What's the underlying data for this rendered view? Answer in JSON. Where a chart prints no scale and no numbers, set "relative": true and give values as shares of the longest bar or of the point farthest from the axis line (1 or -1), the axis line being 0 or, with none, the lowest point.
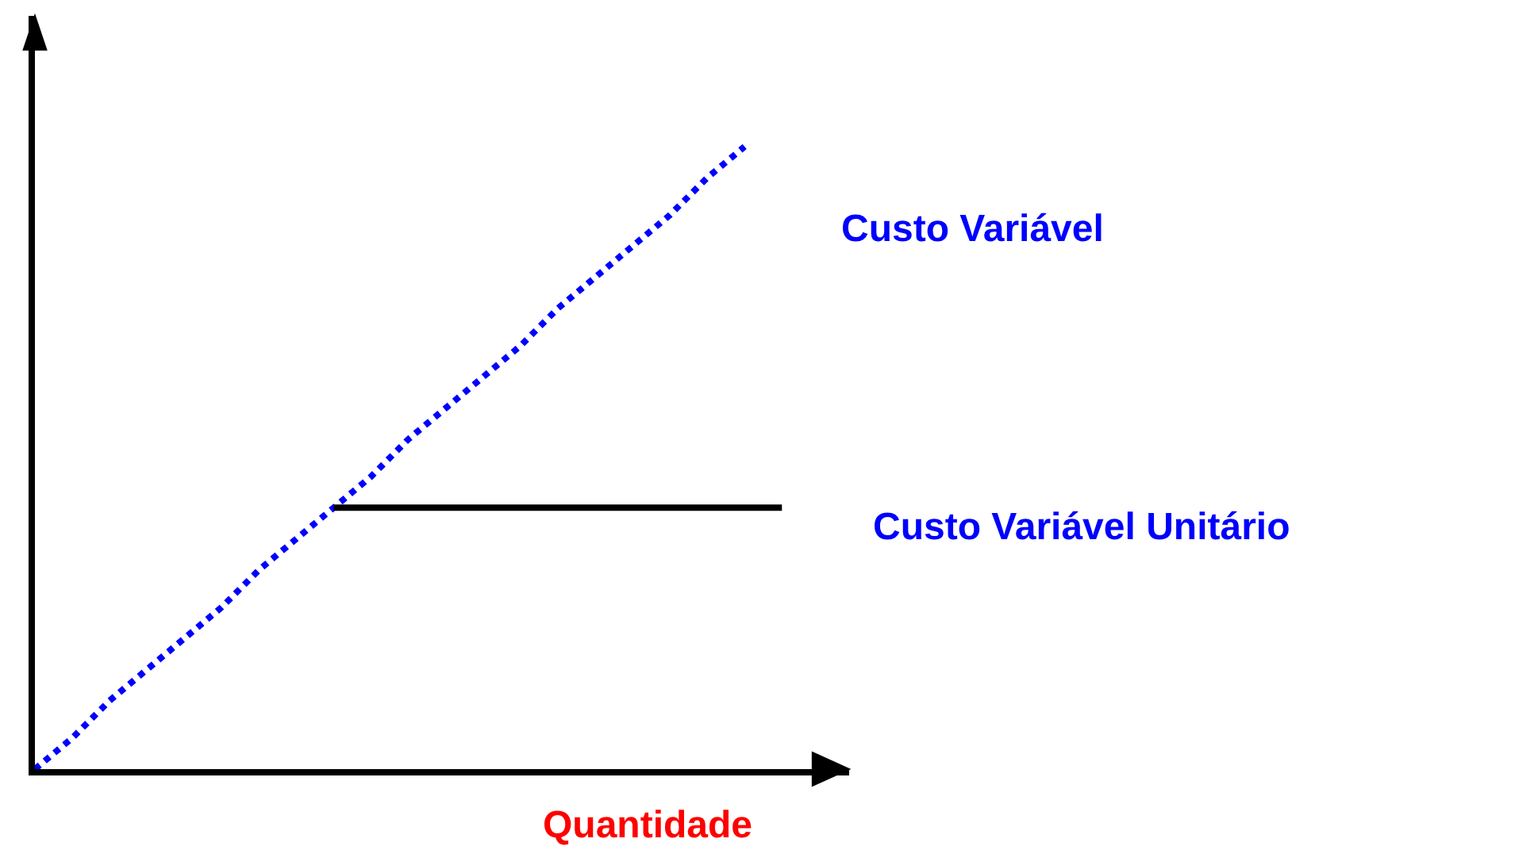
{
  "chart_data": {
    "type": "line",
    "relative": true,
    "xlabel": "Quantidade",
    "legend": false,
    "marker": "none",
    "categories": [
      null,
      null,
      null,
      null,
      null,
      null,
      null,
      null,
      null,
      null,
      null,
      null,
      null,
      null,
      null,
      null,
      null,
      null,
      null,
      null,
      null
    ],
    "series": [
      {
        "name": "Custo Variável",
        "color": "#0000ff",
        "line_style": "dotted",
        "values": [
          0,
          0.05,
          0.11,
          0.16,
          0.21,
          0.26,
          0.32,
          0.37,
          0.42,
          0.47,
          0.53,
          0.58,
          0.63,
          0.68,
          0.74,
          0.79,
          0.84,
          0.89,
          0.95,
          1,
          null
        ]
      },
      {
        "name": "Custo Variável Unitário",
        "color": "#000000",
        "line_style": "solid",
        "values": [
          null,
          null,
          null,
          null,
          null,
          null,
          null,
          null,
          0.42,
          0.42,
          0.42,
          0.42,
          0.42,
          0.42,
          0.42,
          0.42,
          0.42,
          0.42,
          0.42,
          0.42,
          0.42
        ]
      }
    ]
  }
}
